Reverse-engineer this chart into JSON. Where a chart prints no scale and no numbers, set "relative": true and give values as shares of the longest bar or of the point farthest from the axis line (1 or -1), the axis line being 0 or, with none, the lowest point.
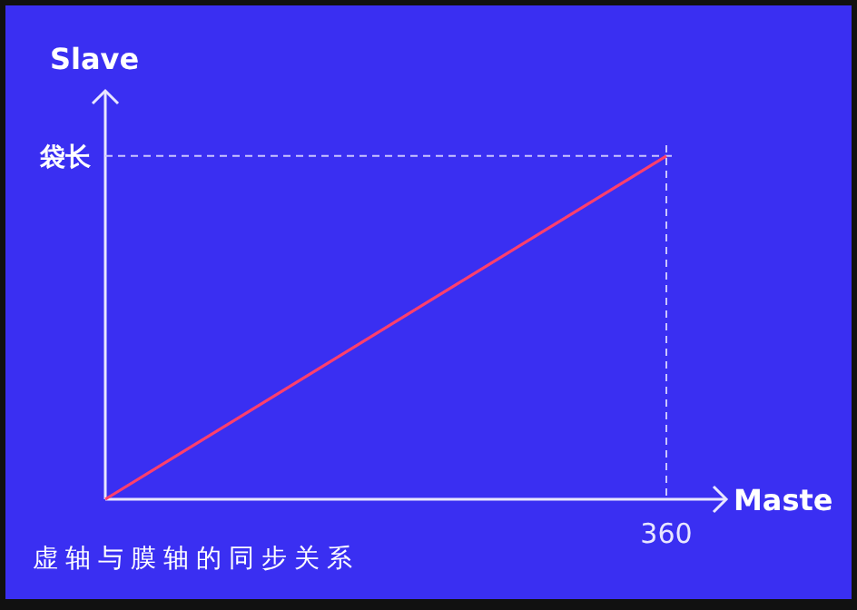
{
  "chart_data": {
    "type": "line",
    "xlabel": "Maste",
    "ylabel": "Slave",
    "relative": true,
    "categories": [
      null,
      null
    ],
    "series": [
      {
        "color": "#ff3f6c",
        "values": [
          0,
          1
        ]
      }
    ],
    "ref_lines": [
      {
        "axis": "y",
        "value": 1,
        "label": "袋长",
        "line_style": "dashed",
        "color": "#c9c4ff"
      },
      {
        "axis": "x",
        "label": "360",
        "line_style": "dashed",
        "color": "#c9c4ff"
      }
    ],
    "annotations": [
      "虚轴与膜轴的同步关系"
    ],
    "marker": "none",
    "line_style": "solid"
  }
}
